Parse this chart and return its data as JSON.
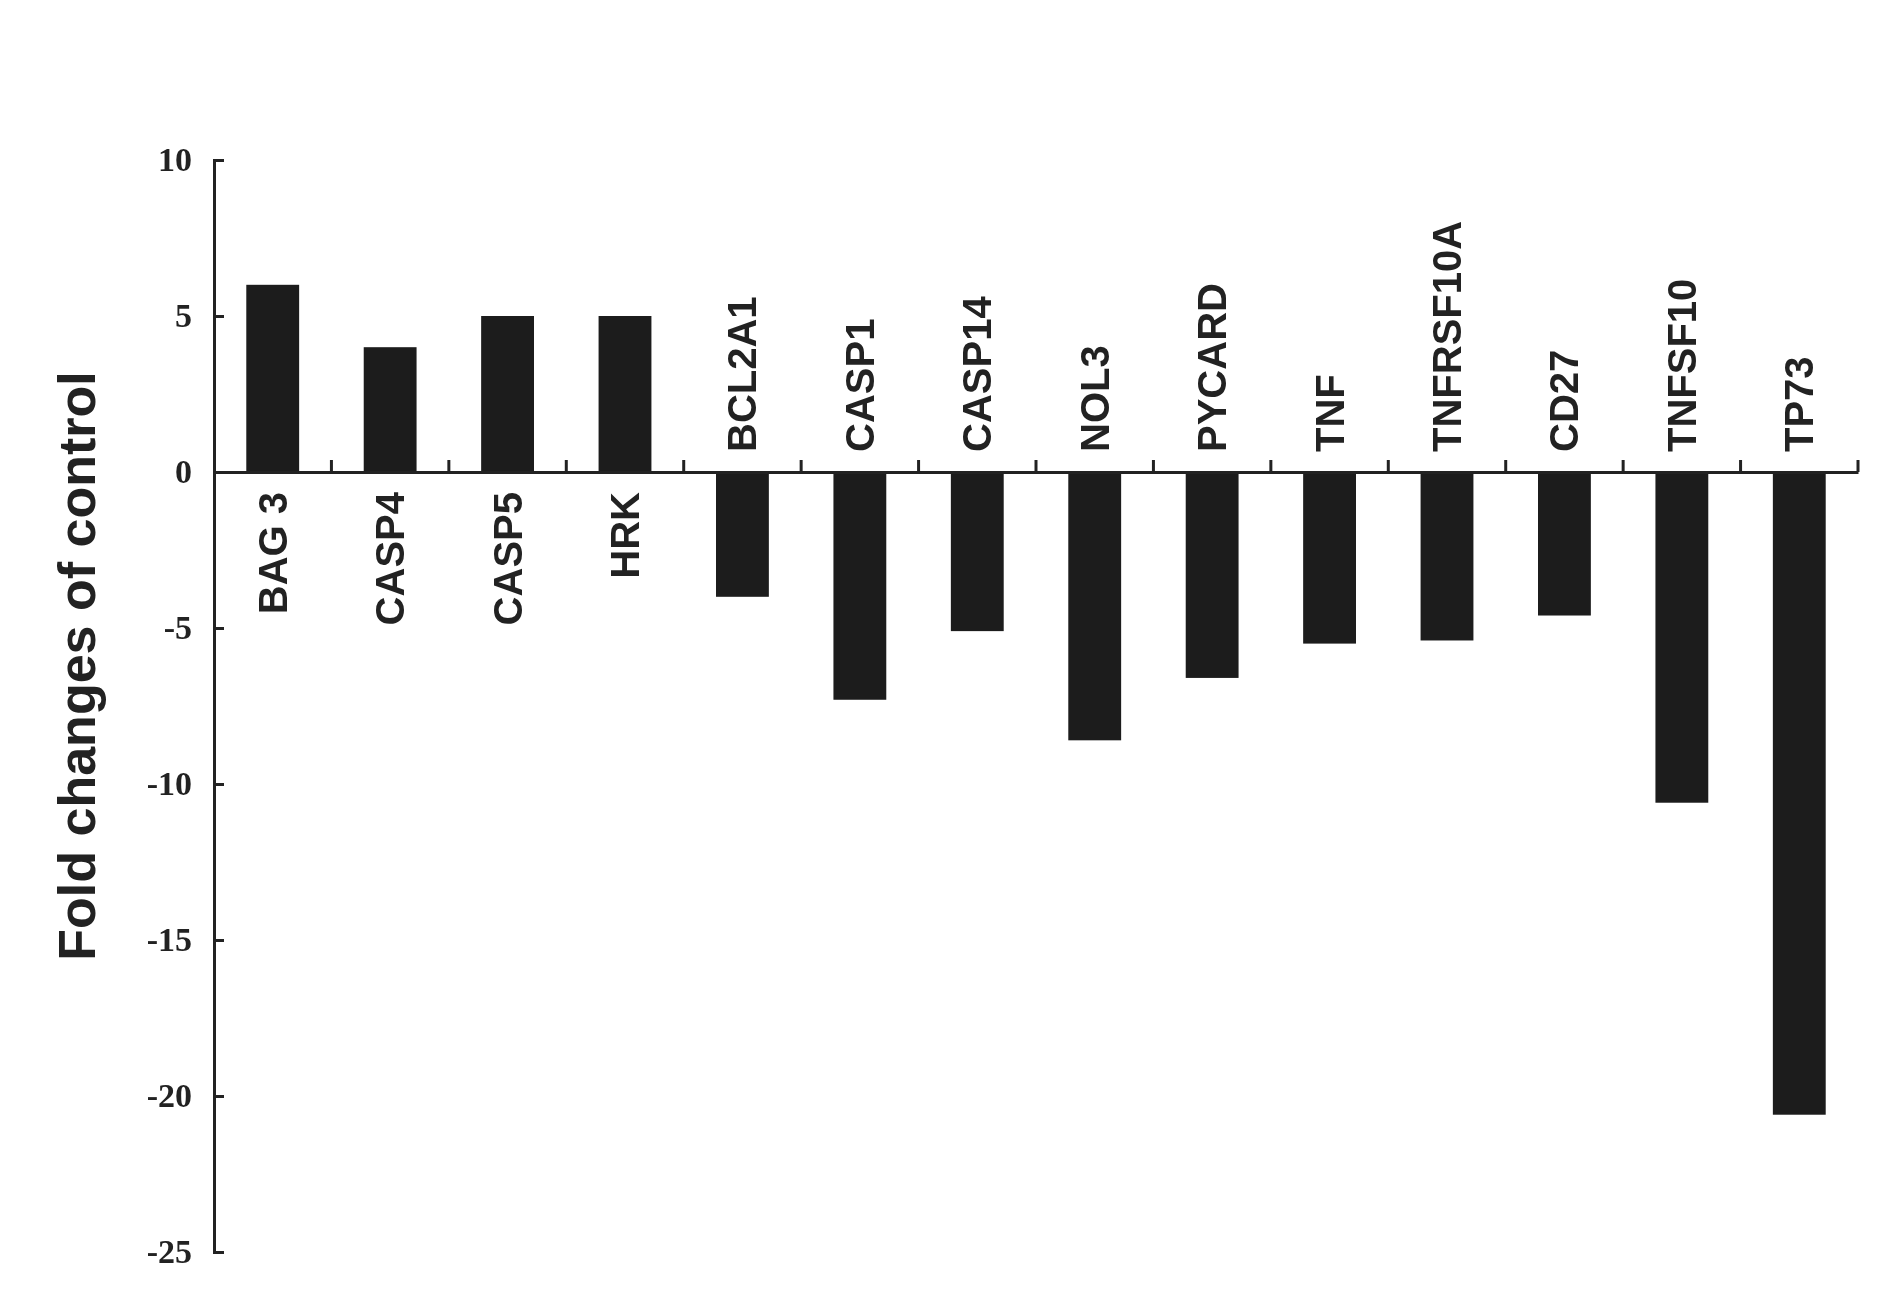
{
  "chart_data": {
    "type": "bar",
    "ylabel": "Fold changes of control",
    "categories": [
      "BAG 3",
      "CASP4",
      "CASP5",
      "HRK",
      "BCL2A1",
      "CASP1",
      "CASP14",
      "NOL3",
      "PYCARD",
      "TNF",
      "TNFRSF10A",
      "CD27",
      "TNFSF10",
      "TP73"
    ],
    "values": [
      6,
      4,
      5,
      5,
      -4,
      -7.3,
      -5.1,
      -8.6,
      -6.6,
      -5.5,
      -5.4,
      -4.6,
      -10.6,
      -20.6
    ],
    "color": "#1c1c1c",
    "ylim": [
      -25,
      10
    ],
    "yticks": [
      -25,
      -20,
      -15,
      -10,
      -5,
      0,
      5,
      10
    ],
    "grid": false
  }
}
